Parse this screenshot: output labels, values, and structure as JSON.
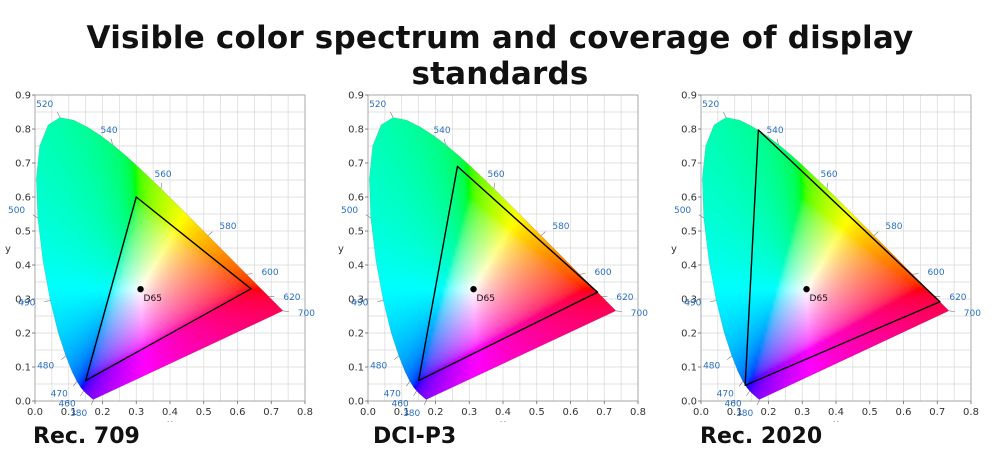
{
  "title": "Visible color spectrum and coverage of display standards",
  "chart_data": [
    {
      "type": "chromaticity-diagram",
      "name": "Rec. 709",
      "xlabel": "x",
      "ylabel": "y",
      "xlim": [
        0,
        0.8
      ],
      "ylim": [
        0,
        0.9
      ],
      "xticks": [
        "0.0",
        "0.1",
        "0.2",
        "0.3",
        "0.4",
        "0.5",
        "0.6",
        "0.7",
        "0.8"
      ],
      "yticks": [
        "0.0",
        "0.1",
        "0.2",
        "0.3",
        "0.4",
        "0.5",
        "0.6",
        "0.7",
        "0.8",
        "0.9"
      ],
      "grid": true,
      "white_point": {
        "label": "D65",
        "x": 0.3127,
        "y": 0.329
      },
      "gamut": [
        [
          0.64,
          0.33
        ],
        [
          0.3,
          0.6
        ],
        [
          0.15,
          0.06
        ]
      ],
      "wavelength_labels": [
        {
          "nm": "380",
          "x": 0.1741,
          "y": 0.005
        },
        {
          "nm": "460",
          "x": 0.144,
          "y": 0.0297
        },
        {
          "nm": "470",
          "x": 0.1241,
          "y": 0.0578
        },
        {
          "nm": "480",
          "x": 0.0913,
          "y": 0.1327
        },
        {
          "nm": "490",
          "x": 0.0454,
          "y": 0.295
        },
        {
          "nm": "500",
          "x": 0.0082,
          "y": 0.5384
        },
        {
          "nm": "520",
          "x": 0.0743,
          "y": 0.8338
        },
        {
          "nm": "540",
          "x": 0.2296,
          "y": 0.7543
        },
        {
          "nm": "560",
          "x": 0.3731,
          "y": 0.6245
        },
        {
          "nm": "580",
          "x": 0.5125,
          "y": 0.4866
        },
        {
          "nm": "600",
          "x": 0.627,
          "y": 0.3725
        },
        {
          "nm": "620",
          "x": 0.6915,
          "y": 0.3083
        },
        {
          "nm": "700",
          "x": 0.7347,
          "y": 0.2653
        }
      ]
    },
    {
      "type": "chromaticity-diagram",
      "name": "DCI-P3",
      "xlabel": "x",
      "ylabel": "y",
      "xlim": [
        0,
        0.8
      ],
      "ylim": [
        0,
        0.9
      ],
      "xticks": [
        "0.0",
        "0.1",
        "0.2",
        "0.3",
        "0.4",
        "0.5",
        "0.6",
        "0.7",
        "0.8"
      ],
      "yticks": [
        "0.0",
        "0.1",
        "0.2",
        "0.3",
        "0.4",
        "0.5",
        "0.6",
        "0.7",
        "0.8",
        "0.9"
      ],
      "grid": true,
      "white_point": {
        "label": "D65",
        "x": 0.3127,
        "y": 0.329
      },
      "gamut": [
        [
          0.68,
          0.32
        ],
        [
          0.265,
          0.69
        ],
        [
          0.15,
          0.06
        ]
      ],
      "wavelength_labels": [
        {
          "nm": "380",
          "x": 0.1741,
          "y": 0.005
        },
        {
          "nm": "460",
          "x": 0.144,
          "y": 0.0297
        },
        {
          "nm": "470",
          "x": 0.1241,
          "y": 0.0578
        },
        {
          "nm": "480",
          "x": 0.0913,
          "y": 0.1327
        },
        {
          "nm": "490",
          "x": 0.0454,
          "y": 0.295
        },
        {
          "nm": "500",
          "x": 0.0082,
          "y": 0.5384
        },
        {
          "nm": "520",
          "x": 0.0743,
          "y": 0.8338
        },
        {
          "nm": "540",
          "x": 0.2296,
          "y": 0.7543
        },
        {
          "nm": "560",
          "x": 0.3731,
          "y": 0.6245
        },
        {
          "nm": "580",
          "x": 0.5125,
          "y": 0.4866
        },
        {
          "nm": "600",
          "x": 0.627,
          "y": 0.3725
        },
        {
          "nm": "620",
          "x": 0.6915,
          "y": 0.3083
        },
        {
          "nm": "700",
          "x": 0.7347,
          "y": 0.2653
        }
      ]
    },
    {
      "type": "chromaticity-diagram",
      "name": "Rec. 2020",
      "xlabel": "x",
      "ylabel": "y",
      "xlim": [
        0,
        0.8
      ],
      "ylim": [
        0,
        0.9
      ],
      "xticks": [
        "0.0",
        "0.1",
        "0.2",
        "0.3",
        "0.4",
        "0.5",
        "0.6",
        "0.7",
        "0.8"
      ],
      "yticks": [
        "0.0",
        "0.1",
        "0.2",
        "0.3",
        "0.4",
        "0.5",
        "0.6",
        "0.7",
        "0.8",
        "0.9"
      ],
      "grid": true,
      "white_point": {
        "label": "D65",
        "x": 0.3127,
        "y": 0.329
      },
      "gamut": [
        [
          0.708,
          0.292
        ],
        [
          0.17,
          0.797
        ],
        [
          0.131,
          0.046
        ]
      ],
      "wavelength_labels": [
        {
          "nm": "380",
          "x": 0.1741,
          "y": 0.005
        },
        {
          "nm": "460",
          "x": 0.144,
          "y": 0.0297
        },
        {
          "nm": "470",
          "x": 0.1241,
          "y": 0.0578
        },
        {
          "nm": "480",
          "x": 0.0913,
          "y": 0.1327
        },
        {
          "nm": "490",
          "x": 0.0454,
          "y": 0.295
        },
        {
          "nm": "500",
          "x": 0.0082,
          "y": 0.5384
        },
        {
          "nm": "520",
          "x": 0.0743,
          "y": 0.8338
        },
        {
          "nm": "540",
          "x": 0.2296,
          "y": 0.7543
        },
        {
          "nm": "560",
          "x": 0.3731,
          "y": 0.6245
        },
        {
          "nm": "580",
          "x": 0.5125,
          "y": 0.4866
        },
        {
          "nm": "600",
          "x": 0.627,
          "y": 0.3725
        },
        {
          "nm": "620",
          "x": 0.6915,
          "y": 0.3083
        },
        {
          "nm": "700",
          "x": 0.7347,
          "y": 0.2653
        }
      ]
    }
  ],
  "colors": {
    "wavelength_label": "#2a6fc0",
    "axis_text": "#333333",
    "grid": "#d9d9d9",
    "gamut_line": "#000000",
    "white_point": "#000000"
  }
}
